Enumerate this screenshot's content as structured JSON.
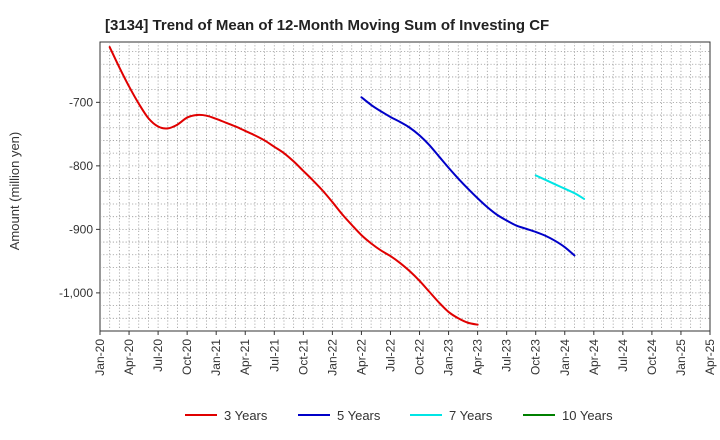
{
  "chart_data": {
    "type": "line",
    "title": "[3134]  Trend of Mean of 12-Month Moving Sum of Investing CF",
    "xlabel": "",
    "ylabel": "Amount (million yen)",
    "x_categories": [
      "Jan-20",
      "Apr-20",
      "Jul-20",
      "Oct-20",
      "Jan-21",
      "Apr-21",
      "Jul-21",
      "Oct-21",
      "Jan-22",
      "Apr-22",
      "Jul-22",
      "Oct-22",
      "Jan-23",
      "Apr-23",
      "Jul-23",
      "Oct-23",
      "Jan-24",
      "Apr-24",
      "Jul-24",
      "Oct-24",
      "Jan-25",
      "Apr-25"
    ],
    "y_ticks": [
      {
        "value": -700,
        "label": "-700"
      },
      {
        "value": -800,
        "label": "-800"
      },
      {
        "value": -900,
        "label": "-900"
      },
      {
        "value": -1000,
        "label": "-1,000"
      }
    ],
    "ylim": [
      -1060,
      -605
    ],
    "grid": true,
    "legend_position": "bottom",
    "series": [
      {
        "name": "3 Years",
        "color": "#e00000",
        "points": [
          [
            1,
            -613
          ],
          [
            2,
            -645
          ],
          [
            3,
            -675
          ],
          [
            4,
            -702
          ],
          [
            5,
            -725
          ],
          [
            6,
            -738
          ],
          [
            7,
            -741
          ],
          [
            8,
            -735
          ],
          [
            9,
            -724
          ],
          [
            10,
            -720
          ],
          [
            11,
            -721
          ],
          [
            12,
            -726
          ],
          [
            13,
            -732
          ],
          [
            14,
            -738
          ],
          [
            15,
            -745
          ],
          [
            16,
            -752
          ],
          [
            17,
            -760
          ],
          [
            18,
            -770
          ],
          [
            19,
            -780
          ],
          [
            20,
            -793
          ],
          [
            21,
            -808
          ],
          [
            22,
            -823
          ],
          [
            23,
            -839
          ],
          [
            24,
            -857
          ],
          [
            25,
            -876
          ],
          [
            26,
            -893
          ],
          [
            27,
            -909
          ],
          [
            28,
            -922
          ],
          [
            29,
            -933
          ],
          [
            30,
            -942
          ],
          [
            31,
            -953
          ],
          [
            32,
            -966
          ],
          [
            33,
            -981
          ],
          [
            34,
            -998
          ],
          [
            35,
            -1015
          ],
          [
            36,
            -1030
          ],
          [
            37,
            -1040
          ],
          [
            38,
            -1047
          ],
          [
            39,
            -1050
          ]
        ]
      },
      {
        "name": "5 Years",
        "color": "#0000c8",
        "points": [
          [
            27,
            -692
          ],
          [
            28,
            -704
          ],
          [
            29,
            -714
          ],
          [
            30,
            -723
          ],
          [
            31,
            -731
          ],
          [
            32,
            -740
          ],
          [
            33,
            -752
          ],
          [
            34,
            -767
          ],
          [
            35,
            -785
          ],
          [
            36,
            -803
          ],
          [
            37,
            -820
          ],
          [
            38,
            -836
          ],
          [
            39,
            -851
          ],
          [
            40,
            -865
          ],
          [
            41,
            -877
          ],
          [
            42,
            -886
          ],
          [
            43,
            -894
          ],
          [
            44,
            -899
          ],
          [
            45,
            -904
          ],
          [
            46,
            -910
          ],
          [
            47,
            -918
          ],
          [
            48,
            -928
          ],
          [
            49,
            -941
          ]
        ]
      },
      {
        "name": "7 Years",
        "color": "#00e5e5",
        "points": [
          [
            45,
            -815
          ],
          [
            46,
            -822
          ],
          [
            47,
            -829
          ],
          [
            48,
            -836
          ],
          [
            49,
            -843
          ],
          [
            50,
            -852
          ]
        ]
      },
      {
        "name": "10 Years",
        "color": "#008000",
        "points": []
      }
    ]
  }
}
